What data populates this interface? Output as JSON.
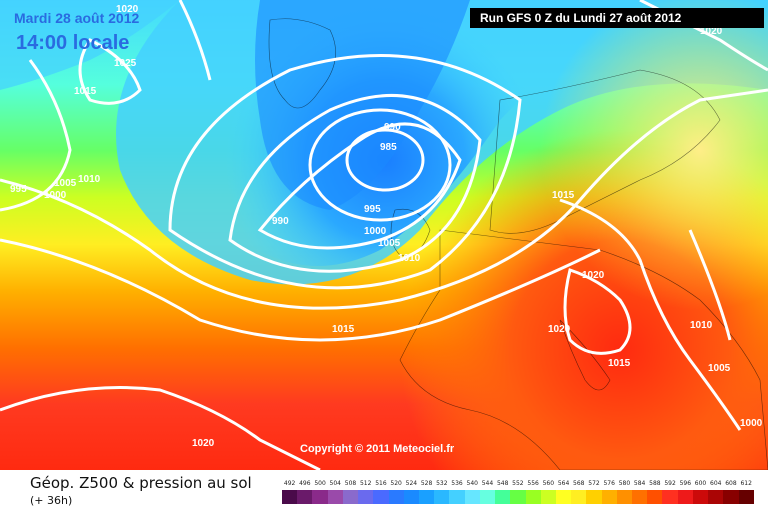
{
  "header": {
    "date": "Mardi 28 août 2012",
    "time": "14:00 locale",
    "run": "Run GFS 0 Z du Lundi 27 août 2012"
  },
  "copyright": "Copyright © 2011 Meteociel.fr",
  "legend": {
    "title": "Géop. Z500 & pression au sol",
    "subtitle": "(+ 36h)",
    "scale_labels": [
      "492",
      "496",
      "500",
      "504",
      "508",
      "512",
      "516",
      "520",
      "524",
      "528",
      "532",
      "536",
      "540",
      "544",
      "548",
      "552",
      "556",
      "560",
      "564",
      "568",
      "572",
      "576",
      "580",
      "584",
      "588",
      "592",
      "596",
      "600",
      "604",
      "608",
      "612"
    ],
    "scale_colors": [
      "#4a0a4a",
      "#6a1a6a",
      "#8a2a8a",
      "#9a4aaa",
      "#8a6acc",
      "#6a6aee",
      "#4a6aff",
      "#2a7aff",
      "#1a8aff",
      "#1aa0ff",
      "#2ab8ff",
      "#44d0ff",
      "#66e6ff",
      "#66ffe0",
      "#44ff99",
      "#66ff44",
      "#99ff22",
      "#ccff22",
      "#ffff22",
      "#ffee22",
      "#ffd000",
      "#ffb000",
      "#ff9000",
      "#ff7000",
      "#ff5000",
      "#ff3020",
      "#ee1a1a",
      "#cc0a0a",
      "#aa0505",
      "#880000",
      "#660000"
    ]
  },
  "isobar_labels": [
    {
      "text": "1020",
      "id": "l1"
    },
    {
      "text": "1025",
      "id": "l2"
    },
    {
      "text": "1015",
      "id": "l3"
    },
    {
      "text": "1005",
      "id": "l4"
    },
    {
      "text": "1010",
      "id": "l5"
    },
    {
      "text": "995",
      "id": "l6"
    },
    {
      "text": "1000",
      "id": "l7"
    },
    {
      "text": "990",
      "id": "l8"
    },
    {
      "text": "985",
      "id": "l9"
    },
    {
      "text": "990",
      "id": "l10"
    },
    {
      "text": "995",
      "id": "l11"
    },
    {
      "text": "1000",
      "id": "l12"
    },
    {
      "text": "1005",
      "id": "l13"
    },
    {
      "text": "1010",
      "id": "l14"
    },
    {
      "text": "1015",
      "id": "l15"
    },
    {
      "text": "1020",
      "id": "l16"
    },
    {
      "text": "1020",
      "id": "l17"
    },
    {
      "text": "1015",
      "id": "l18"
    },
    {
      "text": "1010",
      "id": "l19"
    },
    {
      "text": "1005",
      "id": "l20"
    },
    {
      "text": "1000",
      "id": "l21"
    },
    {
      "text": "1015",
      "id": "l22"
    },
    {
      "text": "1020",
      "id": "l23"
    },
    {
      "text": "1020",
      "id": "l24"
    }
  ]
}
